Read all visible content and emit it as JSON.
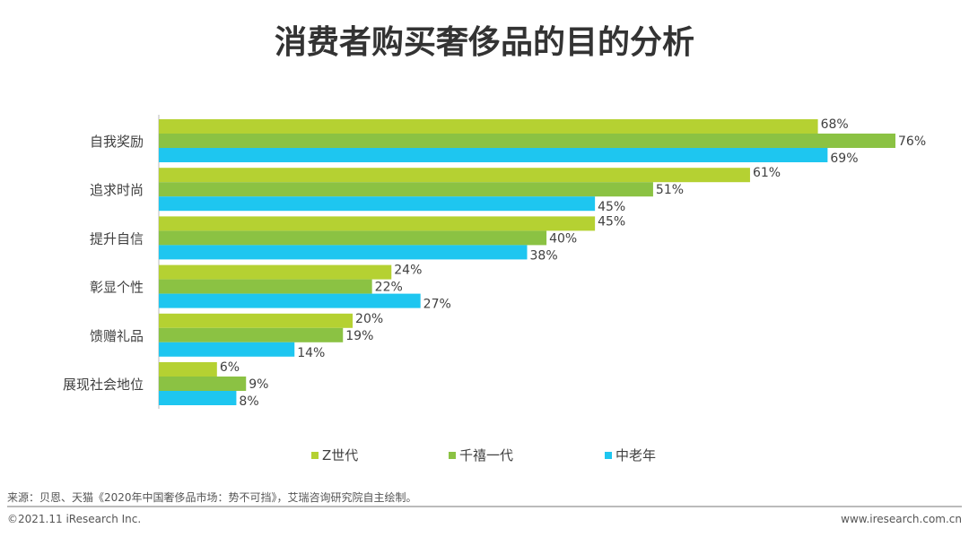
{
  "chart_data": {
    "type": "bar",
    "orientation": "horizontal",
    "title": "消费者购买奢侈品的目的分析",
    "categories": [
      "自我奖励",
      "追求时尚",
      "提升自信",
      "彰显个性",
      "馈赠礼品",
      "展现社会地位"
    ],
    "series": [
      {
        "name": "Z世代",
        "color": "#B5D132",
        "values": [
          68,
          61,
          45,
          24,
          20,
          6
        ]
      },
      {
        "name": "千禧一代",
        "color": "#8BC243",
        "values": [
          76,
          51,
          40,
          22,
          19,
          9
        ]
      },
      {
        "name": "中老年",
        "color": "#1EC6F0",
        "values": [
          69,
          45,
          38,
          27,
          14,
          8
        ]
      }
    ],
    "value_suffix": "%",
    "legend_position": "bottom",
    "grid": false
  },
  "footer": {
    "source": "来源：贝恩、天猫《2020年中国奢侈品市场：势不可挡》，艾瑞咨询研究院自主绘制。",
    "copyright": "©2021.11 iResearch Inc.",
    "website": "www.iresearch.com.cn"
  }
}
